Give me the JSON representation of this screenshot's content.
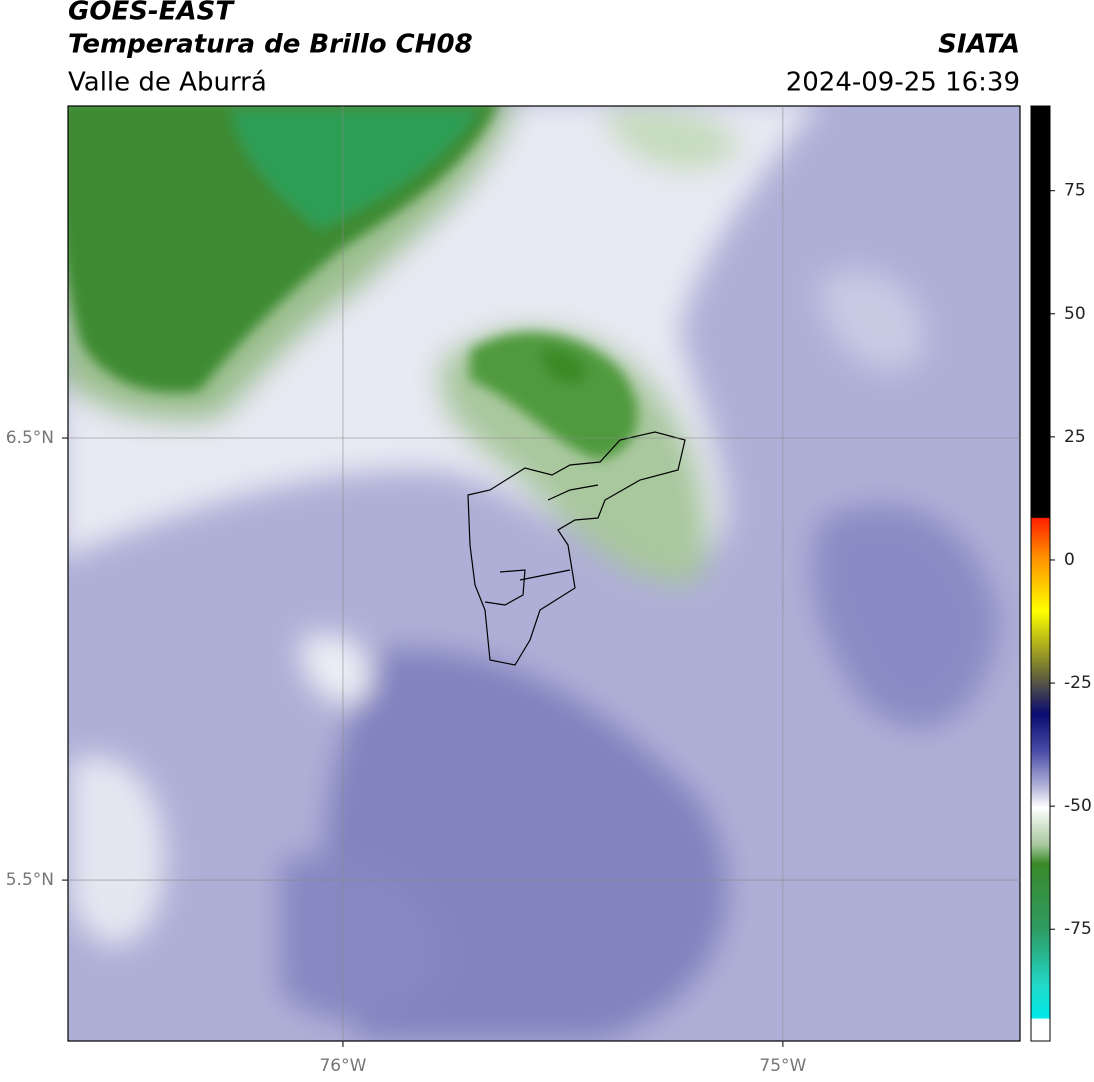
{
  "header": {
    "satellite": "GOES-EAST",
    "product": "Temperatura de Brillo CH08",
    "region": "Valle de Aburrá",
    "source": "SIATA",
    "datetime": "2024-09-25 16:39"
  },
  "map": {
    "xlim": [
      -76.625,
      -74.461
    ],
    "ylim": [
      5.136,
      7.251
    ],
    "xticks": [
      {
        "value": -76,
        "label": "76°W"
      },
      {
        "value": -75,
        "label": "75°W"
      }
    ],
    "yticks": [
      {
        "value": 6.5,
        "label": "6.5°N"
      },
      {
        "value": 5.5,
        "label": "5.5°N"
      }
    ]
  },
  "colorbar": {
    "lim": [
      -97.7,
      92.2
    ],
    "ticks": [
      75,
      50,
      25,
      0,
      -25,
      -50,
      -75
    ]
  }
}
